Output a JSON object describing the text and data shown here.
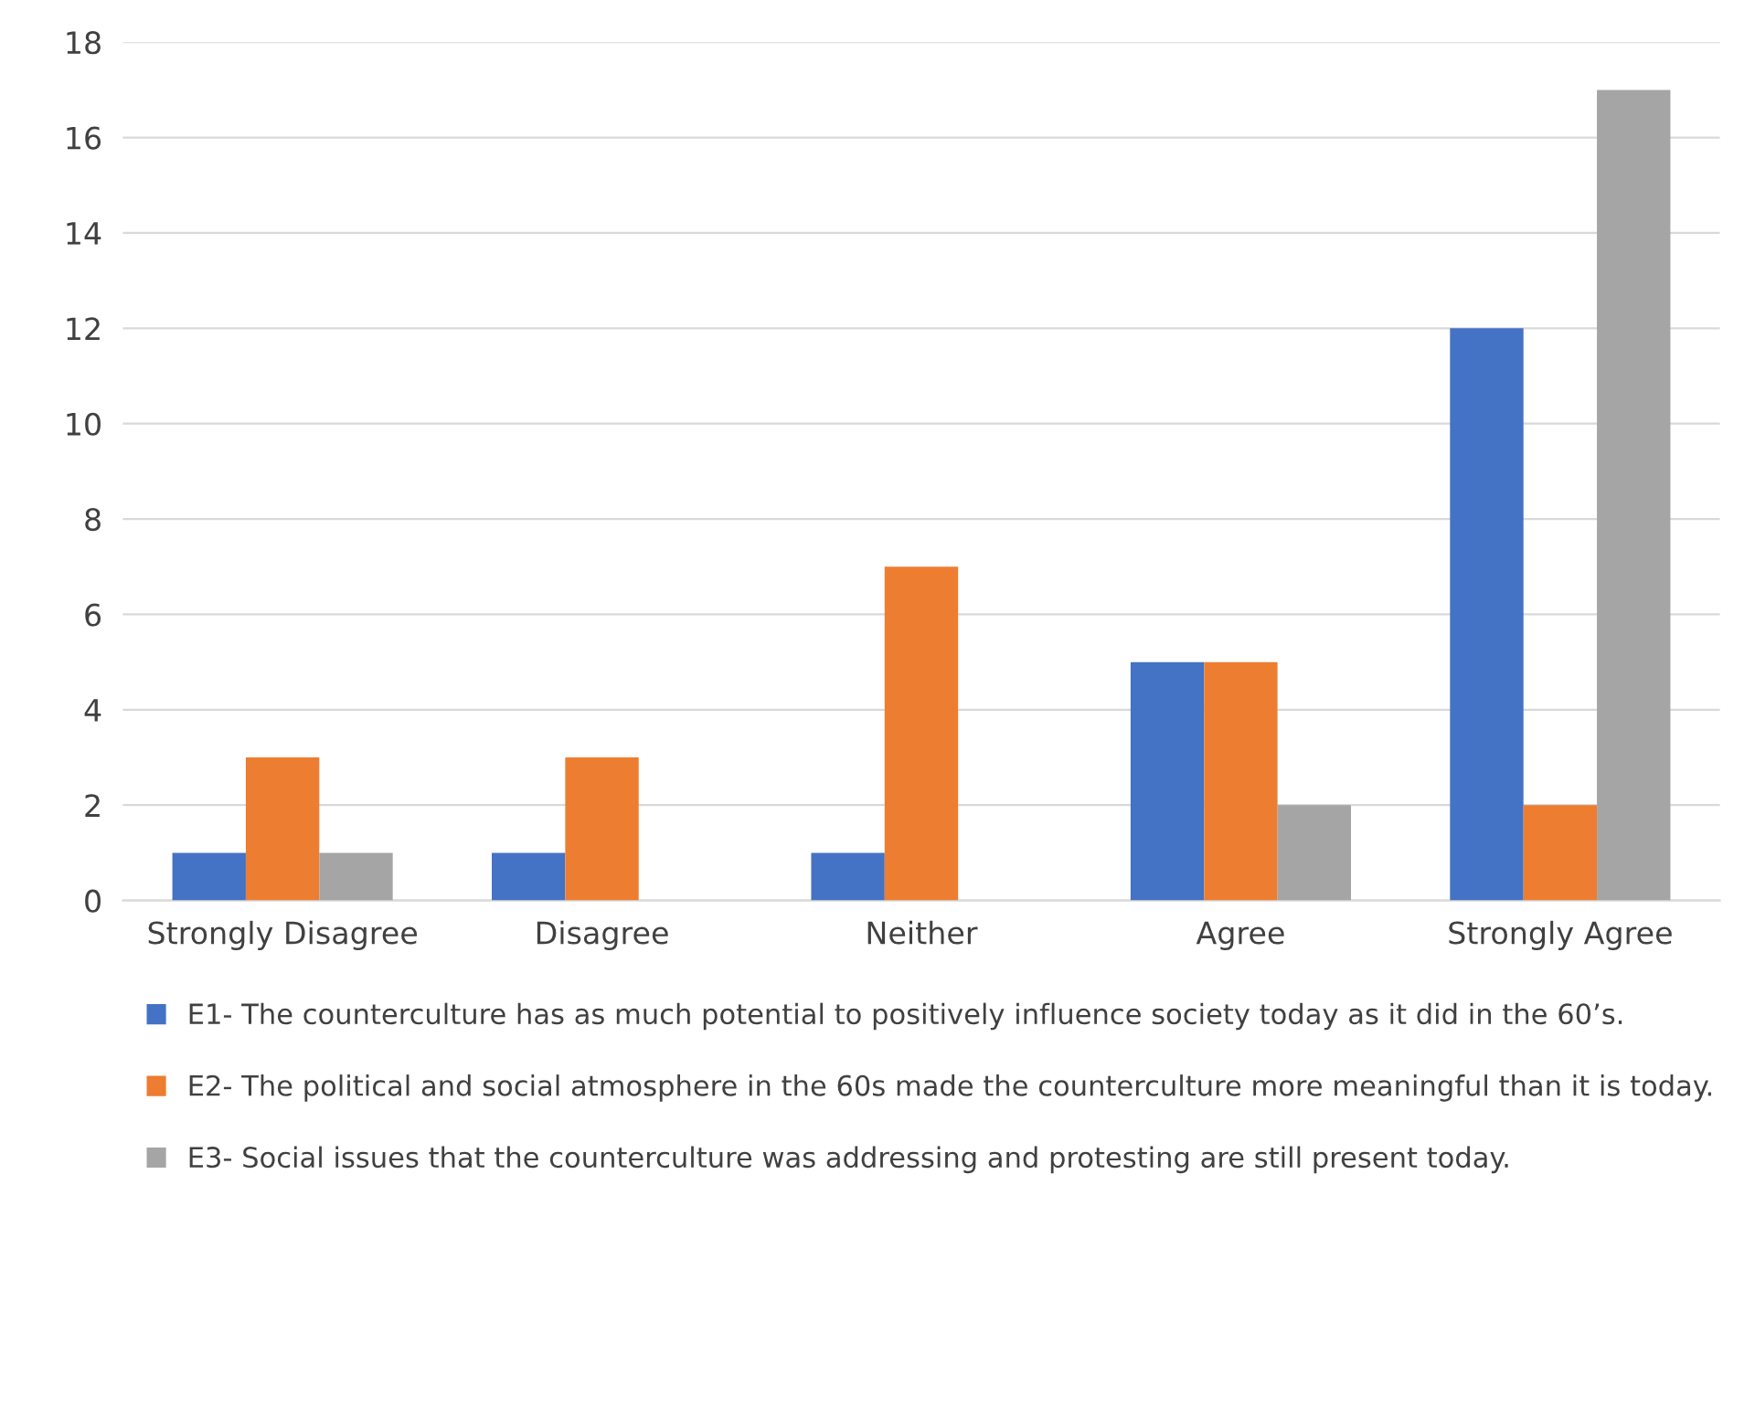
{
  "chart_data": {
    "type": "bar",
    "categories": [
      "Strongly Disagree",
      "Disagree",
      "Neither",
      "Agree",
      "Strongly Agree"
    ],
    "series": [
      {
        "name": "E1- The counterculture has as much potential to positively influence society today as it did in the 60’s.",
        "color": "#4472c4",
        "values": [
          1,
          1,
          1,
          5,
          12
        ]
      },
      {
        "name": "E2- The political and social atmosphere in the 60s made the counterculture more meaningful than it is today.",
        "color": "#ed7d31",
        "values": [
          3,
          3,
          7,
          5,
          2
        ]
      },
      {
        "name": "E3- Social issues that the counterculture was addressing and protesting are still present today.",
        "color": "#a5a5a5",
        "values": [
          1,
          0,
          0,
          2,
          17
        ]
      }
    ],
    "ylim": [
      0,
      18
    ],
    "yticks": [
      0,
      2,
      4,
      6,
      8,
      10,
      12,
      14,
      16,
      18
    ],
    "grid": "y",
    "legend": "bottom"
  }
}
